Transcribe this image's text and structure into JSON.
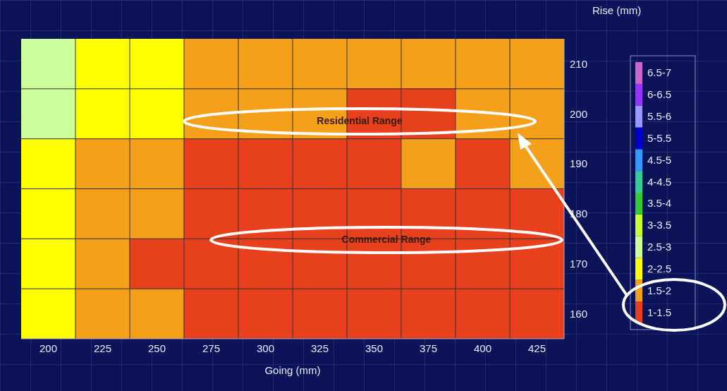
{
  "chart_data": {
    "type": "heatmap",
    "xlabel": "Going (mm)",
    "ylabel": "Rise (mm)",
    "grid": true,
    "categories": [
      "200",
      "225",
      "250",
      "275",
      "300",
      "325",
      "350",
      "375",
      "400",
      "425"
    ],
    "y_categories": [
      "210",
      "200",
      "190",
      "180",
      "170",
      "160"
    ],
    "cells": [
      [
        2.75,
        2.25,
        2.25,
        1.75,
        1.75,
        1.75,
        1.75,
        1.75,
        1.75,
        1.75
      ],
      [
        2.75,
        2.25,
        2.25,
        1.75,
        1.75,
        1.75,
        1.25,
        1.25,
        1.75,
        1.75
      ],
      [
        2.25,
        1.75,
        1.75,
        1.25,
        1.25,
        1.25,
        1.25,
        1.75,
        1.25,
        1.75
      ],
      [
        2.25,
        1.75,
        1.75,
        1.25,
        1.25,
        1.25,
        1.25,
        1.25,
        1.25,
        1.25
      ],
      [
        2.25,
        1.75,
        1.25,
        1.25,
        1.25,
        1.25,
        1.25,
        1.25,
        1.25,
        1.25
      ],
      [
        2.25,
        1.75,
        1.75,
        1.25,
        1.25,
        1.25,
        1.25,
        1.25,
        1.25,
        1.25
      ]
    ],
    "clim": [
      1,
      7
    ],
    "cticks": [
      {
        "value": 1.25,
        "label": "1-1.5"
      },
      {
        "value": 1.75,
        "label": "1.5-2"
      },
      {
        "value": 2.25,
        "label": "2-2.5"
      },
      {
        "value": 2.75,
        "label": "2.5-3"
      },
      {
        "value": 3.25,
        "label": "3-3.5"
      },
      {
        "value": 3.75,
        "label": "3.5-4"
      },
      {
        "value": 4.25,
        "label": "4-4.5"
      },
      {
        "value": 4.75,
        "label": "4.5-5"
      },
      {
        "value": 5.25,
        "label": "5-5.5"
      },
      {
        "value": 5.75,
        "label": "5.5-6"
      },
      {
        "value": 6.25,
        "label": "6-6.5"
      },
      {
        "value": 6.75,
        "label": "6.5-7"
      }
    ],
    "colors": [
      "#e8401c",
      "#f5a01a",
      "#ffff00",
      "#ccff99",
      "#ccff33",
      "#33cc33",
      "#33cc99",
      "#3399ff",
      "#0000cc",
      "#9999ff",
      "#9933ff",
      "#cc66cc"
    ],
    "annotations": [
      "Residential Range",
      "Commercial Range"
    ]
  }
}
